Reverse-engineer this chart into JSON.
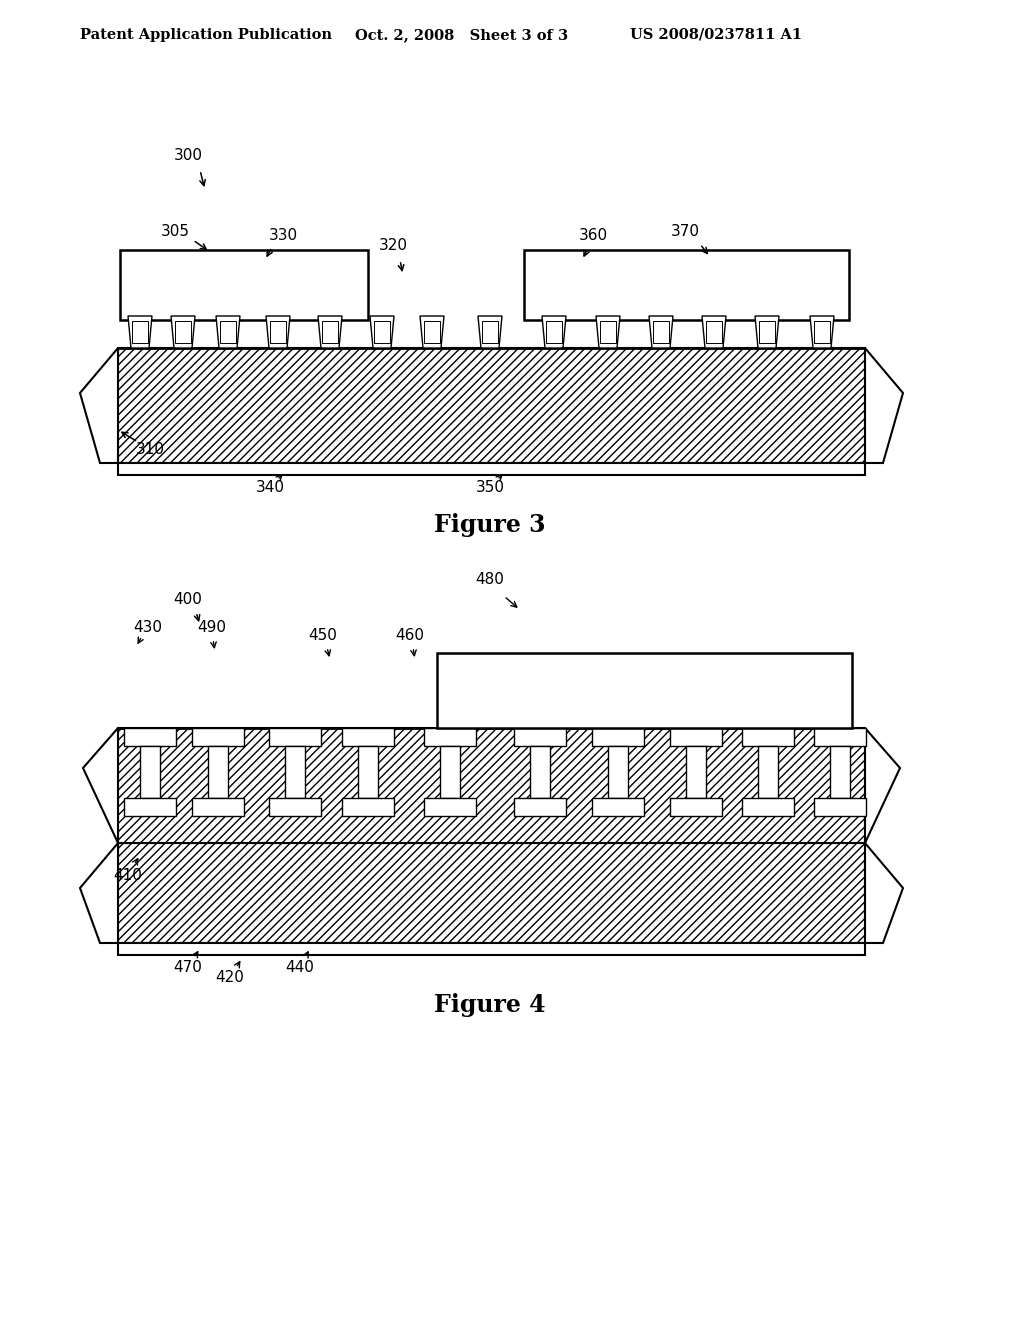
{
  "bg_color": "#ffffff",
  "header_left": "Patent Application Publication",
  "header_mid": "Oct. 2, 2008   Sheet 3 of 3",
  "header_right": "US 2008/0237811 A1",
  "fig3_label": "Figure 3",
  "fig4_label": "Figure 4",
  "line_color": "#000000"
}
